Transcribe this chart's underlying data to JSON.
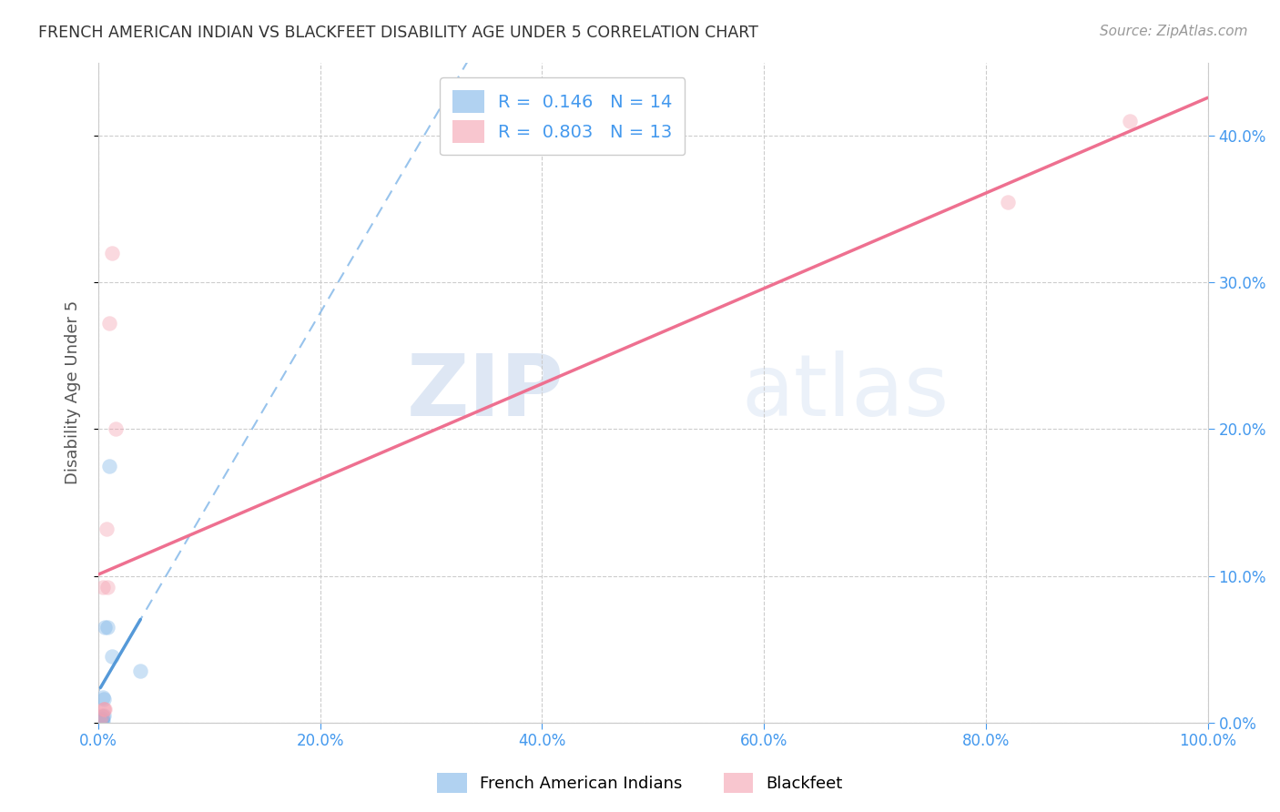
{
  "title": "FRENCH AMERICAN INDIAN VS BLACKFEET DISABILITY AGE UNDER 5 CORRELATION CHART",
  "source": "Source: ZipAtlas.com",
  "ylabel": "Disability Age Under 5",
  "xlim": [
    0.0,
    1.0
  ],
  "ylim": [
    0.0,
    0.45
  ],
  "x_ticks": [
    0.0,
    0.2,
    0.4,
    0.6,
    0.8,
    1.0
  ],
  "y_ticks": [
    0.0,
    0.1,
    0.2,
    0.3,
    0.4
  ],
  "blue_label": "French American Indians",
  "pink_label": "Blackfeet",
  "R_blue": 0.146,
  "N_blue": 14,
  "R_pink": 0.803,
  "N_pink": 13,
  "blue_color": "#7EB5E8",
  "pink_color": "#F4A0B0",
  "blue_line_color": "#5599D8",
  "pink_line_color": "#EE7090",
  "watermark_zip": "ZIP",
  "watermark_atlas": "atlas",
  "blue_scatter_x": [
    0.002,
    0.003,
    0.003,
    0.003,
    0.004,
    0.004,
    0.004,
    0.005,
    0.005,
    0.006,
    0.008,
    0.01,
    0.012,
    0.038
  ],
  "blue_scatter_y": [
    0.001,
    0.001,
    0.002,
    0.003,
    0.001,
    0.004,
    0.017,
    0.005,
    0.016,
    0.065,
    0.065,
    0.175,
    0.045,
    0.035
  ],
  "pink_scatter_x": [
    0.002,
    0.003,
    0.004,
    0.005,
    0.005,
    0.006,
    0.007,
    0.008,
    0.01,
    0.012,
    0.016,
    0.82,
    0.93
  ],
  "pink_scatter_y": [
    0.001,
    0.005,
    0.092,
    0.009,
    0.009,
    0.009,
    0.132,
    0.092,
    0.272,
    0.32,
    0.2,
    0.355,
    0.41
  ],
  "scatter_size": 140,
  "scatter_alpha": 0.4,
  "grid_color": "#CCCCCC",
  "bg_color": "#FFFFFF",
  "tick_color": "#4499EE",
  "axis_color": "#CCCCCC"
}
